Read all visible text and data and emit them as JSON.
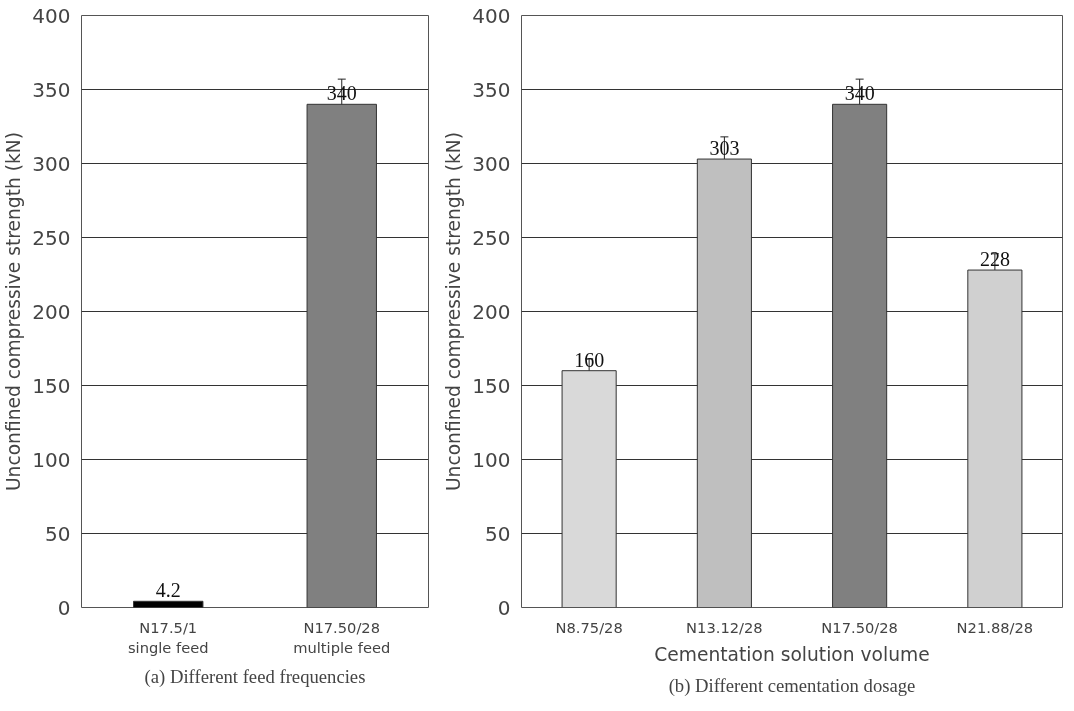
{
  "chart_data": [
    {
      "type": "bar",
      "categories": [
        "N17.5/1\nsingle feed",
        "N17.50/28\nmultiple feed"
      ],
      "values": [
        4.2,
        340
      ],
      "colors": [
        "#000000",
        "#808080"
      ],
      "errors": [
        null,
        17
      ],
      "data_labels": true,
      "ylabel": "Unconfined compressive strength (kN)",
      "ylim": [
        0,
        400
      ],
      "yticks": [
        0,
        50,
        100,
        150,
        200,
        250,
        300,
        350,
        400
      ],
      "grid": "y",
      "annotations": [
        "(a) Different feed frequencies"
      ]
    },
    {
      "type": "bar",
      "categories": [
        "N8.75/28",
        "N13.12/28",
        "N17.50/28",
        "N21.88/28"
      ],
      "values": [
        160,
        303,
        340,
        228
      ],
      "colors": [
        "#d9d9d9",
        "#bfbfbf",
        "#808080",
        "#d0d0d0"
      ],
      "errors": [
        8,
        15,
        17,
        11
      ],
      "data_labels": true,
      "xlabel": "Cementation solution volume",
      "ylabel": "Unconfined compressive strength (kN)",
      "ylim": [
        0,
        400
      ],
      "yticks": [
        0,
        50,
        100,
        150,
        200,
        250,
        300,
        350,
        400
      ],
      "grid": "y",
      "annotations": [
        "(b) Different cementation dosage"
      ]
    }
  ]
}
